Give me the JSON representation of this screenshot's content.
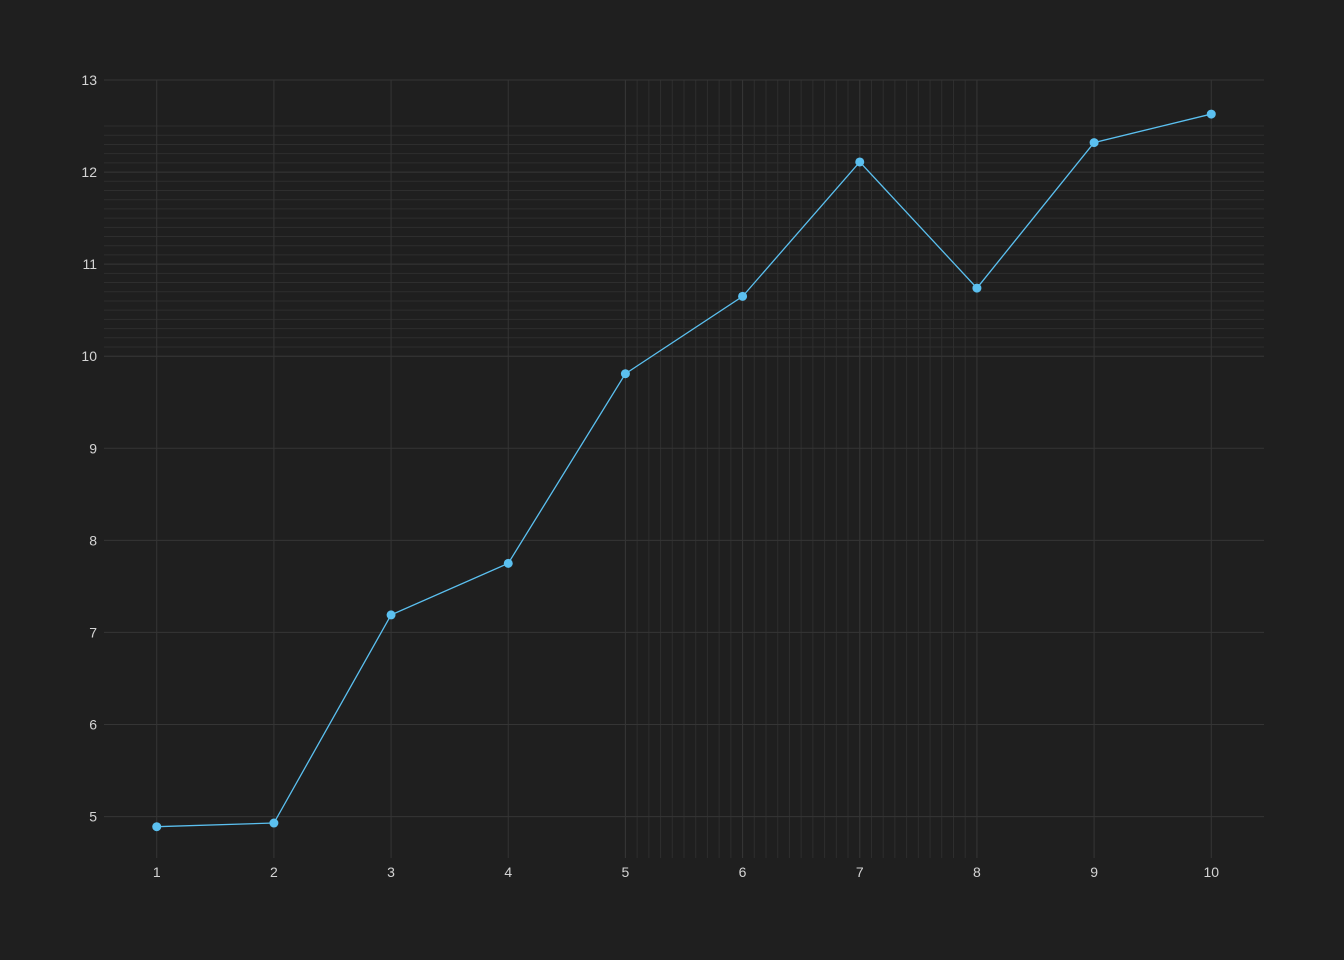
{
  "chart_data": {
    "type": "line",
    "title": "",
    "xlabel": "",
    "ylabel": "",
    "x": [
      1,
      2,
      3,
      4,
      5,
      6,
      7,
      8,
      9,
      10
    ],
    "series": [
      {
        "values": [
          4.89,
          4.93,
          7.19,
          7.75,
          9.81,
          10.65,
          12.11,
          10.74,
          12.32,
          12.63
        ],
        "color": "#5bc0f0",
        "marker": "circle"
      }
    ],
    "xlim": [
      0.55,
      10.45
    ],
    "ylim": [
      4.55,
      13.0
    ],
    "x_ticks": [
      1,
      2,
      3,
      4,
      5,
      6,
      7,
      8,
      9,
      10
    ],
    "x_tick_labels": [
      "1",
      "2",
      "3",
      "4",
      "5",
      "6",
      "7",
      "8",
      "9",
      "10"
    ],
    "y_ticks": [
      5,
      6,
      7,
      8,
      9,
      10,
      11,
      12,
      13
    ],
    "y_tick_labels": [
      "5",
      "6",
      "7",
      "8",
      "9",
      "10",
      "11",
      "12",
      "13"
    ],
    "grid": true,
    "legend": "none",
    "background_color": "#1f1f1f"
  }
}
